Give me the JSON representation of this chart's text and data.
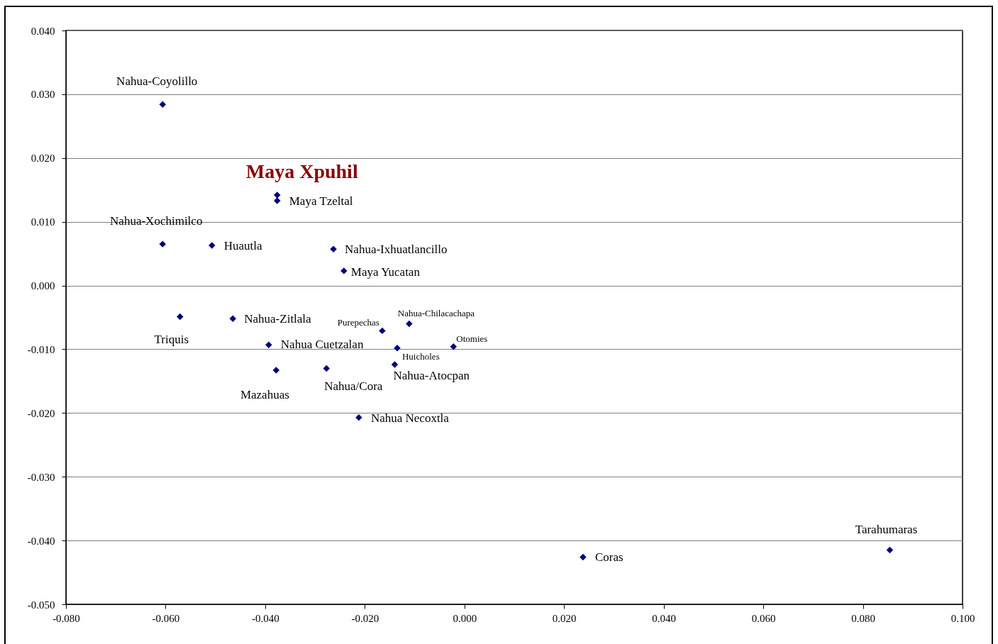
{
  "chart_data": {
    "type": "scatter",
    "marker": "diamond",
    "grid": "y",
    "x": [
      -0.0606,
      -0.0376,
      -0.0376,
      -0.0606,
      -0.0507,
      -0.0263,
      -0.0242,
      -0.0571,
      -0.0465,
      -0.0165,
      -0.0111,
      -0.0022,
      -0.0393,
      -0.0135,
      -0.014,
      -0.0378,
      -0.0277,
      -0.0212,
      0.0238,
      0.0854
    ],
    "series": [
      {
        "color": "#000080",
        "values": [
          0.0284,
          0.0142,
          0.0133,
          0.0065,
          0.0063,
          0.0057,
          0.0023,
          -0.0049,
          -0.0052,
          -0.0071,
          -0.006,
          -0.0096,
          -0.0093,
          -0.0098,
          -0.0124,
          -0.0133,
          -0.013,
          -0.0207,
          -0.0426,
          -0.0415
        ]
      }
    ],
    "xlim": [
      -0.08,
      0.1
    ],
    "xticks": [
      {
        "value": -0.08,
        "label": "-0.080"
      },
      {
        "value": -0.06,
        "label": "-0.060"
      },
      {
        "value": -0.04,
        "label": "-0.040"
      },
      {
        "value": -0.02,
        "label": "-0.020"
      },
      {
        "value": 0,
        "label": "0.000"
      },
      {
        "value": 0.02,
        "label": "0.020"
      },
      {
        "value": 0.04,
        "label": "0.040"
      },
      {
        "value": 0.06,
        "label": "0.060"
      },
      {
        "value": 0.08,
        "label": "0.080"
      },
      {
        "value": 0.1,
        "label": "0.100"
      }
    ],
    "ylim": [
      -0.05,
      0.04
    ],
    "yticks": [
      {
        "value": -0.05,
        "label": "-0.050"
      },
      {
        "value": -0.04,
        "label": "-0.040"
      },
      {
        "value": -0.03,
        "label": "-0.030"
      },
      {
        "value": -0.02,
        "label": "-0.020"
      },
      {
        "value": -0.01,
        "label": "-0.010"
      },
      {
        "value": 0,
        "label": "0.000"
      },
      {
        "value": 0.01,
        "label": "0.010"
      },
      {
        "value": 0.02,
        "label": "0.020"
      },
      {
        "value": 0.03,
        "label": "0.030"
      },
      {
        "value": 0.04,
        "label": "0.040"
      }
    ],
    "annotations": [
      {
        "text": "Nahua-Coyolillo",
        "x": -0.0606,
        "y": 0.0284
      },
      {
        "text": "Maya Xpuhil",
        "x": -0.0376,
        "y": 0.0142
      },
      {
        "text": "Maya Tzeltal",
        "x": -0.0376,
        "y": 0.0133
      },
      {
        "text": "Nahua-Xochimilco",
        "x": -0.0606,
        "y": 0.0065
      },
      {
        "text": "Huautla",
        "x": -0.0507,
        "y": 0.0063
      },
      {
        "text": "Nahua-Ixhuatlancillo",
        "x": -0.0263,
        "y": 0.0057
      },
      {
        "text": "Maya Yucatan",
        "x": -0.0242,
        "y": 0.0023
      },
      {
        "text": "Triquis",
        "x": -0.0571,
        "y": -0.0049
      },
      {
        "text": "Nahua-Zitlala",
        "x": -0.0465,
        "y": -0.0052
      },
      {
        "text": "Purepechas",
        "x": -0.0165,
        "y": -0.0071
      },
      {
        "text": "Nahua-Chilacachapa",
        "x": -0.0111,
        "y": -0.006
      },
      {
        "text": "Otomies",
        "x": -0.0022,
        "y": -0.0096
      },
      {
        "text": "Nahua Cuetzalan",
        "x": -0.0393,
        "y": -0.0093
      },
      {
        "text": "Huicholes",
        "x": -0.0135,
        "y": -0.0098
      },
      {
        "text": "Nahua-Atocpan",
        "x": -0.014,
        "y": -0.0124
      },
      {
        "text": "Mazahuas",
        "x": -0.0378,
        "y": -0.0133
      },
      {
        "text": "Nahua/Cora",
        "x": -0.0277,
        "y": -0.013
      },
      {
        "text": "Nahua Necoxtla",
        "x": -0.0212,
        "y": -0.0207
      },
      {
        "text": "Coras",
        "x": 0.0238,
        "y": -0.0426
      },
      {
        "text": "Tarahumaras",
        "x": 0.0854,
        "y": -0.0415
      }
    ]
  }
}
